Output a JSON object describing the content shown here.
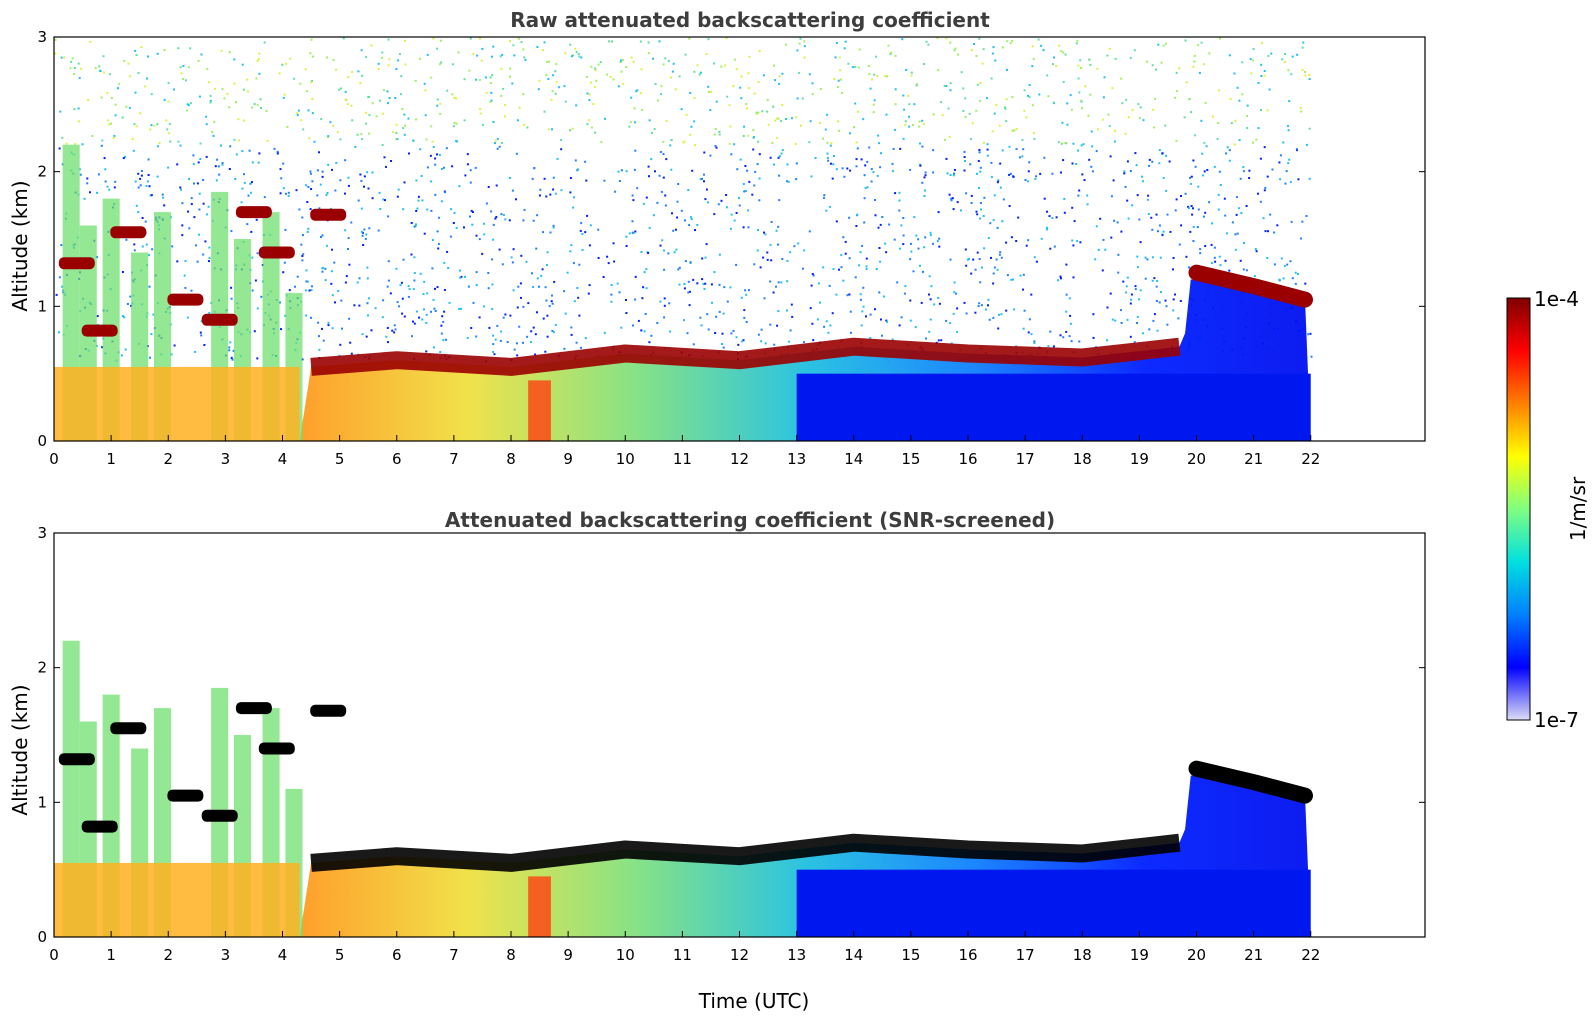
{
  "chart_data": [
    {
      "type": "heatmap",
      "title": "Raw attenuated backscattering coefficient",
      "xlabel": "",
      "ylabel": "Altitude (km)",
      "xlim": [
        0,
        24
      ],
      "ylim": [
        0,
        3
      ],
      "x_ticks": [
        "0",
        "1",
        "2",
        "3",
        "4",
        "5",
        "6",
        "7",
        "8",
        "9",
        "10",
        "11",
        "12",
        "13",
        "14",
        "15",
        "16",
        "17",
        "18",
        "19",
        "20",
        "21",
        "22"
      ],
      "y_ticks": [
        "0",
        "1",
        "2",
        "3"
      ],
      "data_extent_hours": [
        0,
        22
      ],
      "features": {
        "boundary_layer_top_km": [
          {
            "x": 4.5,
            "y": 0.55
          },
          {
            "x": 6,
            "y": 0.6
          },
          {
            "x": 8,
            "y": 0.55
          },
          {
            "x": 10,
            "y": 0.65
          },
          {
            "x": 12,
            "y": 0.6
          },
          {
            "x": 14,
            "y": 0.7
          },
          {
            "x": 16,
            "y": 0.65
          },
          {
            "x": 18,
            "y": 0.62
          },
          {
            "x": 19.7,
            "y": 0.7
          }
        ],
        "elevated_layer_km": [
          {
            "x": 20,
            "y": 1.25
          },
          {
            "x": 21,
            "y": 1.15
          },
          {
            "x": 21.9,
            "y": 1.05
          }
        ],
        "early_clouds_km": [
          {
            "x": 0.4,
            "y": 1.32
          },
          {
            "x": 0.8,
            "y": 0.82
          },
          {
            "x": 1.3,
            "y": 1.55
          },
          {
            "x": 2.3,
            "y": 1.05
          },
          {
            "x": 2.9,
            "y": 0.9
          },
          {
            "x": 3.5,
            "y": 1.7
          },
          {
            "x": 3.9,
            "y": 1.4
          },
          {
            "x": 4.8,
            "y": 1.68
          }
        ]
      },
      "noise_above_boundary_layer": true
    },
    {
      "type": "heatmap",
      "title": "Attenuated backscattering coefficient (SNR-screened)",
      "xlabel": "Time (UTC)",
      "ylabel": "Altitude (km)",
      "xlim": [
        0,
        24
      ],
      "ylim": [
        0,
        3
      ],
      "x_ticks": [
        "0",
        "1",
        "2",
        "3",
        "4",
        "5",
        "6",
        "7",
        "8",
        "9",
        "10",
        "11",
        "12",
        "13",
        "14",
        "15",
        "16",
        "17",
        "18",
        "19",
        "20",
        "21",
        "22"
      ],
      "y_ticks": [
        "0",
        "1",
        "2",
        "3"
      ],
      "data_extent_hours": [
        0,
        22
      ],
      "saturated_color": "#000000",
      "noise_above_boundary_layer": false
    }
  ],
  "colorbar": {
    "max_label": "1e-4",
    "min_label": "1e-7",
    "unit_label": "1/m/sr",
    "colormap": "jet",
    "stops": [
      "#dcdcf5",
      "#0000ff",
      "#0080ff",
      "#00e0e0",
      "#80ff80",
      "#ffff00",
      "#ff8000",
      "#ff0000",
      "#800000"
    ]
  }
}
